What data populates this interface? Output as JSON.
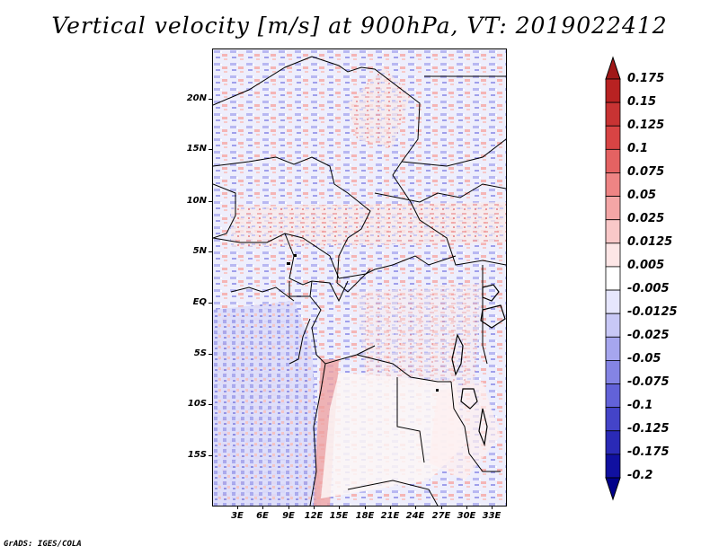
{
  "title": "Vertical velocity [m/s] at 900hPa, VT: 2019022412",
  "footer": "GrADS: IGES/COLA",
  "map": {
    "lat_labels": [
      "20N",
      "15N",
      "10N",
      "5N",
      "EQ",
      "5S",
      "10S",
      "15S"
    ],
    "lon_labels": [
      "3E",
      "6E",
      "9E",
      "12E",
      "15E",
      "18E",
      "21E",
      "24E",
      "27E",
      "30E",
      "33E"
    ]
  },
  "colorbar": {
    "labels": [
      "0.175",
      "0.15",
      "0.125",
      "0.1",
      "0.075",
      "0.05",
      "0.025",
      "0.0125",
      "0.005",
      "-0.005",
      "-0.0125",
      "-0.025",
      "-0.05",
      "-0.075",
      "-0.1",
      "-0.125",
      "-0.175",
      "-0.2"
    ],
    "colors": [
      "#a01818",
      "#b82222",
      "#c83333",
      "#d84444",
      "#e46262",
      "#ee8484",
      "#f4a6a6",
      "#f9c8c8",
      "#fde6e6",
      "#ffffff",
      "#e6e6fd",
      "#c8c8f6",
      "#a6a6ee",
      "#8484e4",
      "#6262d8",
      "#4444c8",
      "#2a2ab6",
      "#1010a0",
      "#00008a"
    ]
  }
}
